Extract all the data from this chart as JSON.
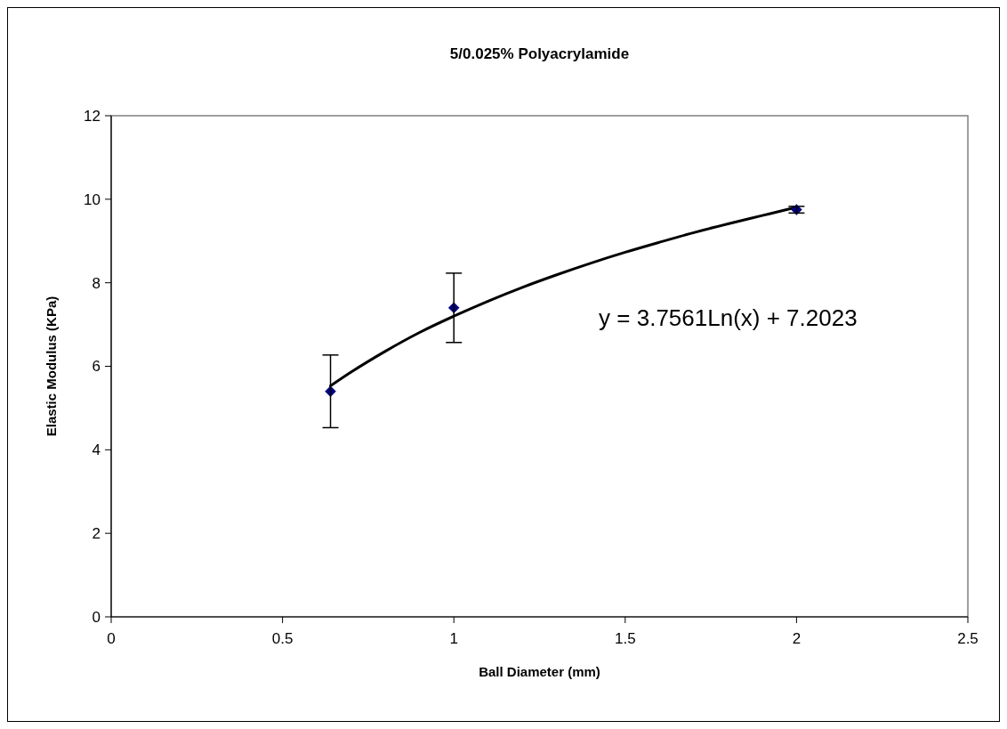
{
  "chart_data": {
    "type": "scatter",
    "title": "5/0.025% Polyacrylamide",
    "xlabel": "Ball Diameter (mm)",
    "ylabel": "Elastic Modulus (KPa)",
    "xlim": [
      0,
      2.5
    ],
    "xticks": [
      0,
      0.5,
      1,
      1.5,
      2,
      2.5
    ],
    "ylim": [
      0,
      12
    ],
    "yticks": [
      0,
      2,
      4,
      6,
      8,
      10,
      12
    ],
    "grid": false,
    "marker": "diamond",
    "annotations": [
      "y = 3.7561Ln(x) + 7.2023"
    ],
    "series": [
      {
        "type": "line",
        "color": "#000000",
        "marker": "none",
        "line_style": "solid",
        "x": [
          0.64,
          0.7,
          0.8,
          0.9,
          1.0,
          1.1,
          1.2,
          1.3,
          1.4,
          1.5,
          1.6,
          1.7,
          1.8,
          1.9,
          2.0
        ],
        "values": [
          5.53,
          5.86,
          6.36,
          6.81,
          7.2,
          7.56,
          7.89,
          8.19,
          8.47,
          8.73,
          8.97,
          9.2,
          9.41,
          9.61,
          9.81
        ]
      },
      {
        "color": "#000080",
        "x": [
          0.64,
          1,
          2
        ],
        "values": [
          5.4,
          7.4,
          9.75
        ],
        "errors": [
          0.87,
          0.83,
          0.08
        ]
      }
    ]
  }
}
